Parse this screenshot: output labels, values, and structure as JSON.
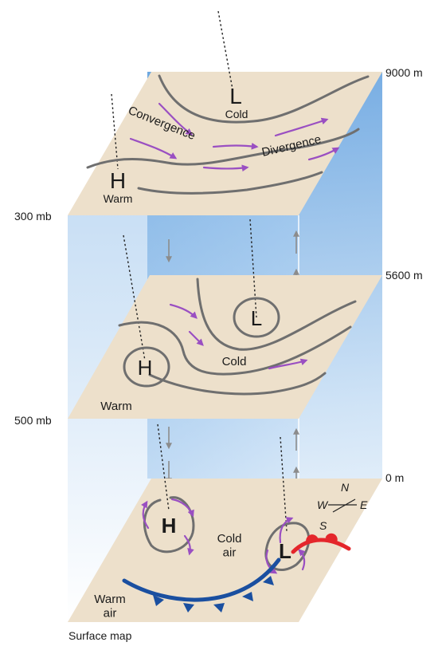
{
  "altitude_labels": {
    "top": "9000 m",
    "middle": "5600 m",
    "surface": "0 m"
  },
  "pressure_labels": {
    "upper": "300 mb",
    "middle": "500 mb"
  },
  "upper_level": {
    "low_symbol": "L",
    "low_label": "Cold",
    "high_symbol": "H",
    "high_label": "Warm",
    "convergence_label": "Convergence",
    "divergence_label": "Divergence"
  },
  "middle_level": {
    "low_symbol": "L",
    "high_symbol": "H",
    "cold_label": "Cold",
    "warm_label": "Warm"
  },
  "surface_level": {
    "high_symbol": "H",
    "low_symbol": "L",
    "cold_air_label": "Cold\nair",
    "warm_air_label": "Warm\nair",
    "title": "Surface map",
    "compass": {
      "n": "N",
      "s": "S",
      "e": "E",
      "w": "W"
    }
  },
  "colors": {
    "plane": "#ede0cb",
    "sky_blue": "#7fb3e6",
    "isobar": "#6f6f6f",
    "wind_arrow": "#9a4fc2",
    "vertical_arrow": "#8c8c8c",
    "high_pressure_blue": "#1f5fa8",
    "low_pressure_red": "#e4262b",
    "cold_front": "#1a4fa0",
    "warm_front": "#e4262b"
  }
}
